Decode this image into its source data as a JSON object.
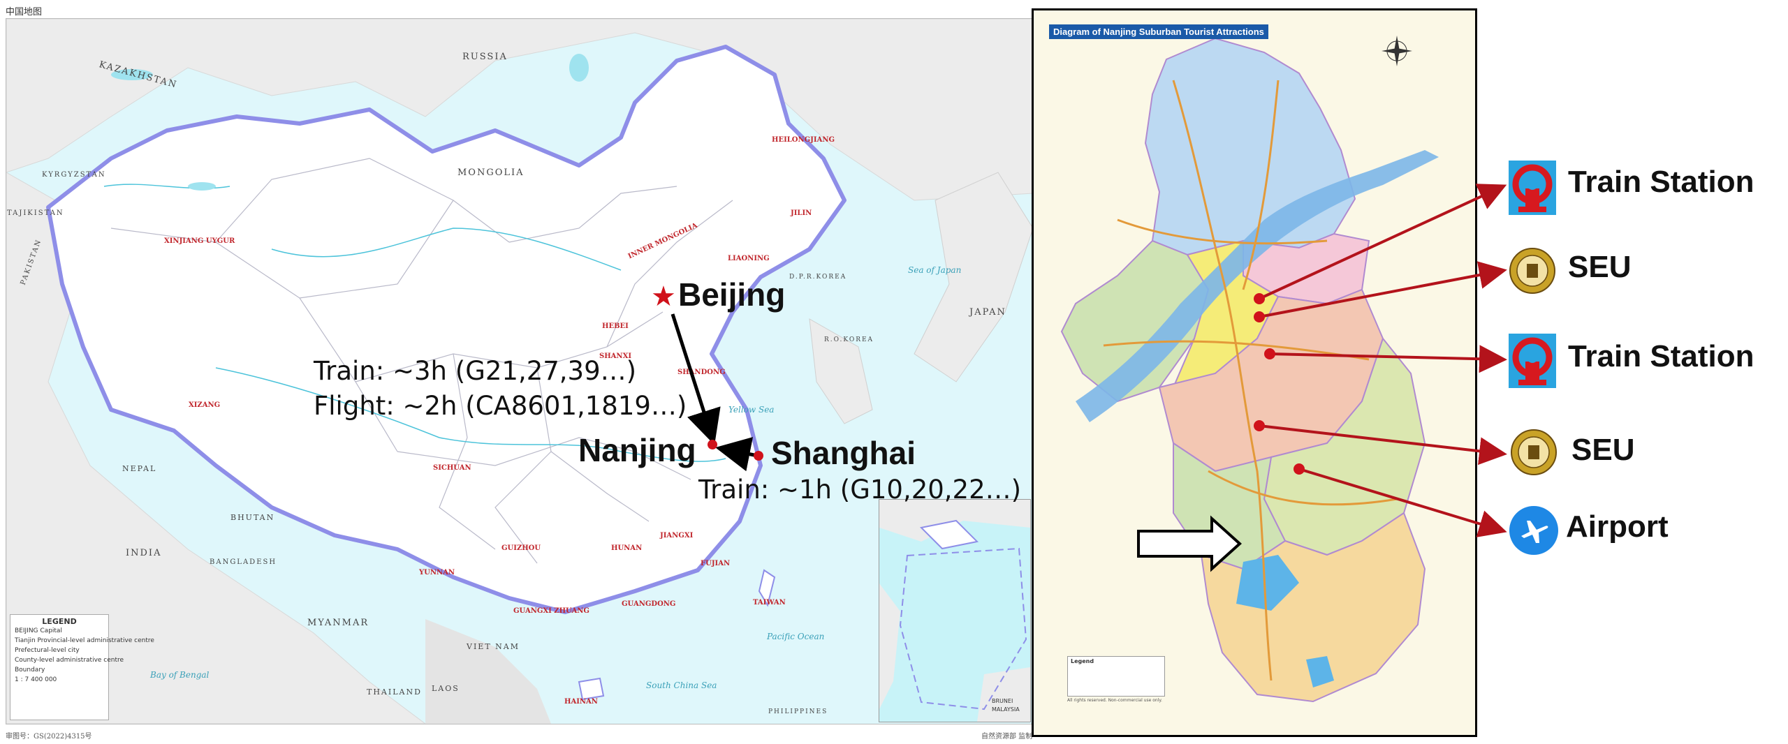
{
  "china_map": {
    "title": "中国地图",
    "footer_left": "审图号：GS(2022)4315号",
    "footer_right": "自然资源部 监制",
    "countries": [
      "RUSSIA",
      "MONGOLIA",
      "KAZAKHSTAN",
      "KYRGYZSTAN",
      "TAJIKISTAN",
      "PAKISTAN",
      "INDIA",
      "NEPAL",
      "BHUTAN",
      "BANGLADESH",
      "MYANMAR",
      "LAOS",
      "THAILAND",
      "VIET NAM",
      "JAPAN",
      "R.O.KOREA",
      "D.P.R.KOREA",
      "PHILIPPINES",
      "MALAYSIA",
      "BRUNEI"
    ],
    "provinces": [
      "HEILONGJIANG",
      "JILIN",
      "LIAONING",
      "INNER MONGOLIA",
      "XINJIANG UYGUR",
      "XIZANG",
      "HEBEI",
      "SHANXI",
      "SHANDONG",
      "SICHUAN",
      "YUNNAN",
      "GUIZHOU",
      "HUNAN",
      "JIANGXI",
      "FUJIAN",
      "GUANGDONG",
      "GUANGXI ZHUANG",
      "HAINAN",
      "TAIWAN"
    ],
    "seas": [
      "Bay of Bengal",
      "South China Sea",
      "Pacific Ocean",
      "Yellow Sea",
      "Sea of Japan"
    ],
    "legend_title": "LEGEND",
    "legend_rows": [
      "BEIJING Capital",
      "Tianjin Provincial-level administrative centre",
      "Prefectural-level city",
      "County-level administrative centre",
      "Boundary",
      "1 : 7 400 000"
    ],
    "cities": {
      "beijing": "Beijing",
      "nanjing": "Nanjing",
      "shanghai": "Shanghai"
    },
    "routes": {
      "beijing_train": "Train: ~3h (G21,27,39…)",
      "beijing_flight": "Flight: ~2h (CA8601,1819…)",
      "shanghai_train": "Train: ~1h (G10,20,22…)"
    }
  },
  "nanjing_map": {
    "title": "Diagram of Nanjing Suburban Tourist Attractions",
    "legend_title": "Legend",
    "footer": "All rights reserved. Non-commercial use only."
  },
  "callouts": [
    {
      "label": "Train Station",
      "icon": "railway-logo-icon"
    },
    {
      "label": "SEU",
      "icon": "seu-emblem-icon"
    },
    {
      "label": "Train Station",
      "icon": "railway-logo-icon"
    },
    {
      "label": "SEU",
      "icon": "seu-emblem-icon"
    },
    {
      "label": "Airport",
      "icon": "airplane-icon"
    }
  ],
  "colors": {
    "route_arrow": "#000000",
    "callout_arrow": "#b3131b",
    "city_dot": "#d0121b",
    "railway_bg": "#2aa4e0",
    "railway_mark": "#d7191f",
    "airport_bg": "#1e88e5",
    "seu_gold": "#c9a227"
  }
}
